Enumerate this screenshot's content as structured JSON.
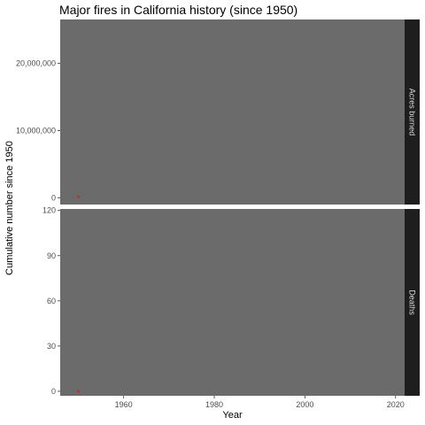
{
  "chart_data": {
    "type": "scatter",
    "title": "Major fires in California history (since 1950)",
    "xlabel": "Year",
    "ylabel": "Cumulative number since 1950",
    "xlim": [
      1946,
      2022
    ],
    "x_ticks": [
      1960,
      1980,
      2000,
      2020
    ],
    "x_tick_labels": [
      "1960",
      "1980",
      "2000",
      "2020"
    ],
    "point_color": "#e41a1c",
    "panel_bg": "#6b6b6b",
    "strip_bg": "#1e1e1e",
    "panels": [
      {
        "label": "Acres burned",
        "ylim": [
          -1000000,
          26500000
        ],
        "y_ticks": [
          0,
          10000000,
          20000000
        ],
        "y_tick_labels": [
          "0",
          "10,000,000",
          "20,000,000"
        ],
        "points": [
          {
            "x": 1950,
            "y": 150000
          }
        ]
      },
      {
        "label": "Deaths",
        "ylim": [
          -3,
          121
        ],
        "y_ticks": [
          0,
          30,
          60,
          90,
          120
        ],
        "y_tick_labels": [
          "0",
          "30",
          "60",
          "90",
          "120"
        ],
        "points": [
          {
            "x": 1950,
            "y": 0
          }
        ]
      }
    ]
  }
}
